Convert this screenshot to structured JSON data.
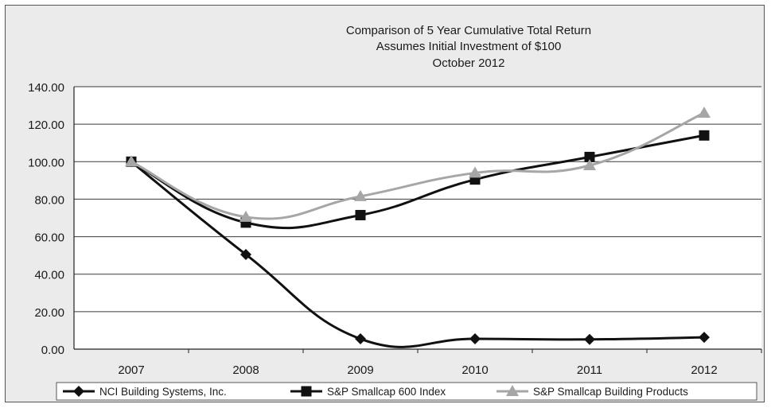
{
  "chart_data": {
    "type": "line",
    "title_lines": [
      "Comparison of 5 Year Cumulative Total Return",
      "Assumes Initial Investment of $100",
      "October 2012"
    ],
    "categories": [
      "2007",
      "2008",
      "2009",
      "2010",
      "2011",
      "2012"
    ],
    "ylim": [
      0,
      140
    ],
    "yticks": [
      "0.00",
      "20.00",
      "40.00",
      "60.00",
      "80.00",
      "100.00",
      "120.00",
      "140.00"
    ],
    "grid": true,
    "legend_position": "bottom",
    "series": [
      {
        "name": "NCI Building Systems, Inc.",
        "marker": "diamond",
        "color": "#111111",
        "values": [
          100,
          50.5,
          5.5,
          5.5,
          5.2,
          6.3
        ]
      },
      {
        "name": "S&P Smallcap 600 Index",
        "marker": "square",
        "color": "#111111",
        "values": [
          100,
          67.5,
          71.5,
          90.5,
          102.5,
          114
        ]
      },
      {
        "name": "S&P Smallcap Building Products",
        "marker": "triangle",
        "color": "#a6a6a6",
        "values": [
          100,
          70.5,
          81.5,
          94,
          98,
          126
        ]
      }
    ]
  }
}
